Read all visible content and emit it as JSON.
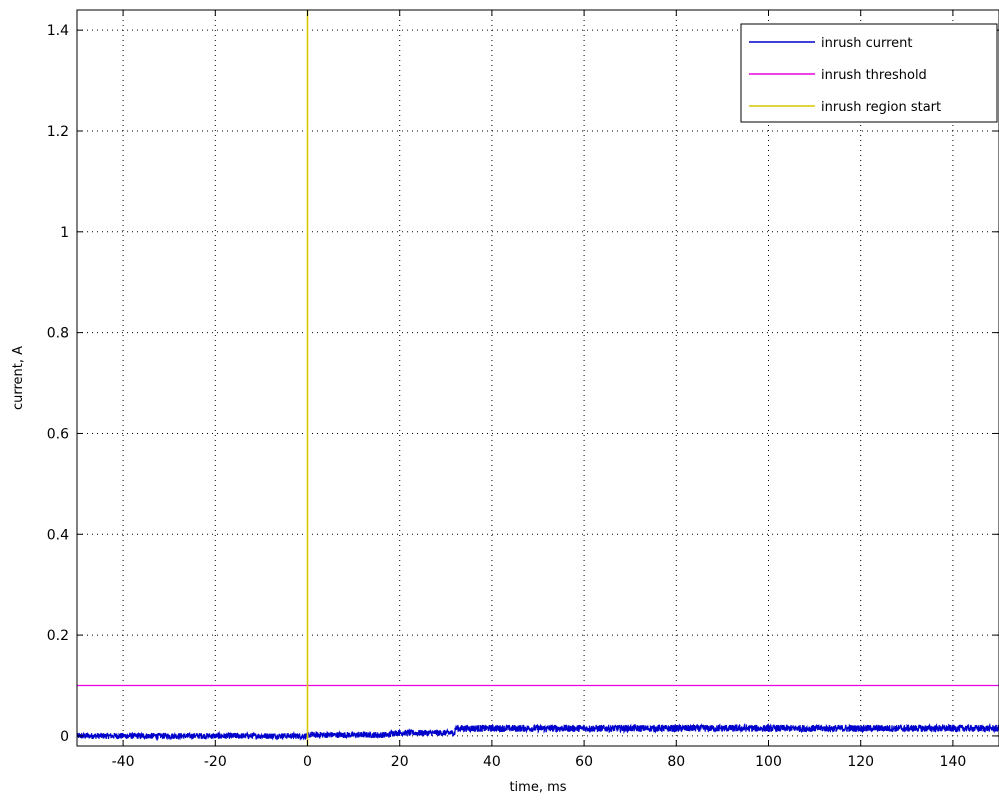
{
  "chart_data": {
    "type": "line",
    "title": "",
    "xlabel": "time, ms",
    "ylabel": "current, A",
    "xlim": [
      -50,
      150
    ],
    "ylim": [
      -0.02,
      1.44
    ],
    "xticks": [
      -40,
      -20,
      0,
      20,
      40,
      60,
      80,
      100,
      120,
      140
    ],
    "yticks": [
      0,
      0.2,
      0.4,
      0.6,
      0.8,
      1,
      1.2,
      1.4
    ],
    "xtick_labels": [
      "-40",
      "-20",
      "0",
      "20",
      "40",
      "60",
      "80",
      "100",
      "120",
      "140"
    ],
    "ytick_labels": [
      "0",
      "0.2",
      "0.4",
      "0.6",
      "0.8",
      "1",
      "1.2",
      "1.4"
    ],
    "grid": true,
    "legend_position": "top-right",
    "series": [
      {
        "name": "inrush current",
        "color": "#0000cc",
        "kind": "noisy-trace",
        "segments": [
          {
            "x_start": -50,
            "x_end": 0,
            "mean": 0.0,
            "noise": 0.006
          },
          {
            "x_start": 0,
            "x_end": 18,
            "mean": 0.002,
            "noise": 0.006
          },
          {
            "x_start": 18,
            "x_end": 32,
            "mean": 0.006,
            "noise": 0.006
          },
          {
            "x_start": 32,
            "x_end": 150,
            "mean": 0.015,
            "noise": 0.007
          }
        ]
      },
      {
        "name": "inrush threshold",
        "color": "#e600e6",
        "kind": "hline",
        "y": 0.1
      },
      {
        "name": "inrush region start",
        "color": "#d8c800",
        "kind": "vline",
        "x": 0
      }
    ]
  }
}
